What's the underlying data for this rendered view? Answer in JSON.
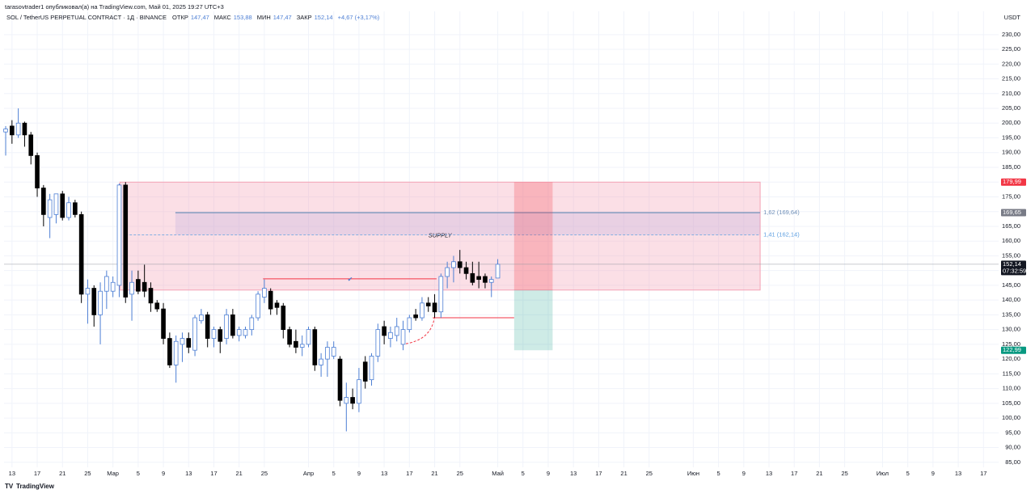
{
  "header": {
    "author": "tarasovtrader1 опубликовал(а) на TradingView.com, Май 01, 2025 19:27 UTC+3",
    "brand": "TradingView"
  },
  "chart_data": {
    "type": "candlestick",
    "title": "SOL / TetherUS PERPETUAL CONTRACT · 1Д · BINANCE",
    "ohlc_legend": [
      {
        "name": "ОТКР",
        "value": "147,47"
      },
      {
        "name": "МАКС",
        "value": "153,88"
      },
      {
        "name": "МИН",
        "value": "147,47"
      },
      {
        "name": "ЗАКР",
        "value": "152,14"
      }
    ],
    "change": "+4,67 (+3,17%)",
    "y_unit": "USDT",
    "xlim": [
      -0.26,
      157.4
    ],
    "ylim": [
      83.3,
      237.9
    ],
    "xticks": [
      {
        "value": 1,
        "label": "13"
      },
      {
        "value": 5,
        "label": "17"
      },
      {
        "value": 9,
        "label": "21"
      },
      {
        "value": 13,
        "label": "25"
      },
      {
        "value": 17,
        "label": "Мар"
      },
      {
        "value": 21,
        "label": "5"
      },
      {
        "value": 25,
        "label": "9"
      },
      {
        "value": 29,
        "label": "13"
      },
      {
        "value": 33,
        "label": "17"
      },
      {
        "value": 37,
        "label": "21"
      },
      {
        "value": 41,
        "label": "25"
      },
      {
        "value": 48,
        "label": "Апр"
      },
      {
        "value": 52,
        "label": "5"
      },
      {
        "value": 56,
        "label": "9"
      },
      {
        "value": 60,
        "label": "13"
      },
      {
        "value": 64,
        "label": "17"
      },
      {
        "value": 68,
        "label": "21"
      },
      {
        "value": 72,
        "label": "25"
      },
      {
        "value": 78,
        "label": "Май"
      },
      {
        "value": 82,
        "label": "5"
      },
      {
        "value": 86,
        "label": "9"
      },
      {
        "value": 90,
        "label": "13"
      },
      {
        "value": 94,
        "label": "17"
      },
      {
        "value": 98,
        "label": "21"
      },
      {
        "value": 102,
        "label": "25"
      },
      {
        "value": 109,
        "label": "Июн"
      },
      {
        "value": 113,
        "label": "5"
      },
      {
        "value": 117,
        "label": "9"
      },
      {
        "value": 121,
        "label": "13"
      },
      {
        "value": 125,
        "label": "17"
      },
      {
        "value": 129,
        "label": "21"
      },
      {
        "value": 133,
        "label": "25"
      },
      {
        "value": 139,
        "label": "Июл"
      },
      {
        "value": 143,
        "label": "5"
      },
      {
        "value": 147,
        "label": "9"
      },
      {
        "value": 151,
        "label": "13"
      },
      {
        "value": 155,
        "label": "17"
      }
    ],
    "yticks": [
      {
        "value": 85,
        "label": "85,00"
      },
      {
        "value": 90,
        "label": "90,00"
      },
      {
        "value": 95,
        "label": "95,00"
      },
      {
        "value": 100,
        "label": "100,00"
      },
      {
        "value": 105,
        "label": "105,00"
      },
      {
        "value": 110,
        "label": "110,00"
      },
      {
        "value": 115,
        "label": "115,00"
      },
      {
        "value": 120,
        "label": "120,00"
      },
      {
        "value": 125,
        "label": "125,00"
      },
      {
        "value": 130,
        "label": "130,00"
      },
      {
        "value": 135,
        "label": "135,00"
      },
      {
        "value": 140,
        "label": "140,00"
      },
      {
        "value": 145,
        "label": "145,00"
      },
      {
        "value": 150,
        "label": "150,00"
      },
      {
        "value": 155,
        "label": "155,00"
      },
      {
        "value": 160,
        "label": "160,00"
      },
      {
        "value": 165,
        "label": "165,00"
      },
      {
        "value": 170,
        "label": "170,00"
      },
      {
        "value": 175,
        "label": "175,00"
      },
      {
        "value": 180,
        "label": "180,00"
      },
      {
        "value": 185,
        "label": "185,00"
      },
      {
        "value": 190,
        "label": "190,00"
      },
      {
        "value": 195,
        "label": "195,00"
      },
      {
        "value": 200,
        "label": "200,00"
      },
      {
        "value": 205,
        "label": "205,00"
      },
      {
        "value": 210,
        "label": "210,00"
      },
      {
        "value": 215,
        "label": "215,00"
      },
      {
        "value": 220,
        "label": "220,00"
      },
      {
        "value": 225,
        "label": "225,00"
      },
      {
        "value": 230,
        "label": "230,00"
      }
    ],
    "grid": true,
    "bull_color": "#ffffff",
    "bull_border": "#4d7fd4",
    "bear_color": "#000000",
    "open": [
      197,
      199,
      196,
      200,
      196,
      189,
      178,
      168,
      169,
      176,
      168,
      173,
      169,
      142,
      144,
      135,
      143,
      143,
      145,
      179,
      142,
      147,
      146,
      144,
      139,
      137,
      127,
      118,
      125,
      127,
      123,
      133,
      135,
      127,
      130,
      127,
      135,
      128,
      128,
      130,
      134,
      141,
      143,
      139,
      138,
      130,
      126,
      124,
      125,
      130,
      118,
      120,
      121,
      120,
      105,
      107,
      105,
      119,
      113,
      121,
      131,
      127,
      128,
      125,
      130,
      135,
      134,
      139,
      139,
      136,
      148,
      151,
      153,
      151,
      149,
      148,
      148,
      146,
      147.47
    ],
    "high": [
      199,
      201,
      205,
      200.5,
      197,
      190,
      179,
      176,
      176,
      177,
      175,
      174,
      170,
      147,
      145,
      146,
      150,
      148,
      179.5,
      180,
      150,
      150,
      152,
      146,
      140,
      139,
      129,
      128,
      129,
      129,
      135,
      137,
      136,
      131,
      131,
      137,
      137,
      131,
      131,
      135,
      143,
      147,
      144,
      140,
      139,
      131,
      130,
      128,
      131,
      131,
      122,
      126,
      126,
      121,
      112,
      110,
      117,
      121,
      122,
      132,
      133,
      131,
      134,
      133,
      135,
      137,
      141,
      141,
      142,
      149,
      153,
      155,
      157,
      153,
      153,
      153,
      149,
      148,
      153.88
    ],
    "low": [
      189,
      193,
      195,
      192,
      186,
      175,
      165,
      161,
      166,
      167,
      167,
      168,
      139,
      132,
      131,
      125,
      137,
      141,
      141,
      139,
      133,
      142,
      141,
      136,
      136,
      125,
      117,
      112,
      119,
      122,
      121,
      132,
      124,
      124,
      122,
      125,
      127,
      126,
      127,
      128,
      133,
      139,
      135,
      135,
      127,
      124,
      122,
      121,
      124,
      116,
      114,
      114,
      120,
      104,
      95.5,
      103,
      102,
      110,
      111,
      119,
      125,
      124,
      126,
      123,
      129,
      133,
      133,
      136,
      134,
      134,
      144,
      146,
      149,
      147,
      145,
      144,
      144,
      141,
      147.47
    ],
    "close": [
      198,
      196,
      200,
      196,
      189,
      178,
      169,
      174,
      176,
      168,
      173,
      169,
      142,
      144,
      135,
      143,
      148,
      146,
      179,
      141,
      146,
      143,
      143,
      139,
      137,
      127,
      118,
      126,
      127,
      124,
      134,
      135,
      127,
      130,
      126,
      135,
      128,
      130,
      130,
      134,
      142,
      144,
      137,
      137.5,
      130,
      125,
      124,
      125,
      130,
      118,
      120,
      124,
      124,
      106,
      107,
      105,
      113,
      112.5,
      121,
      130,
      128,
      129,
      131,
      130,
      134,
      134,
      139,
      138,
      136,
      148,
      151,
      153,
      151,
      149,
      146,
      147,
      146,
      147,
      152.14
    ],
    "zone": {
      "label": "SUPPLY",
      "start": 18.1,
      "end": 119.6,
      "top": 179.99,
      "bottom": 143.4,
      "color": "#f4a3b6"
    },
    "fib_levels": [
      {
        "label": "1,62 (169,64)",
        "value": 169.64,
        "start": 26.9,
        "color": "#6f8fb8"
      },
      {
        "label": "1,41 (162,14)",
        "value": 162.14,
        "start": 19,
        "dashed": true,
        "color": "#5d9fe0"
      }
    ],
    "position": {
      "start": 80.6,
      "end": 86.7,
      "stop": 179.99,
      "entry": 143.4,
      "target": 122.99
    },
    "lines": [
      {
        "value": 147.2,
        "start": 40.8,
        "end": 68.3
      },
      {
        "value": 134,
        "start": 67.7,
        "end": 80.6
      }
    ],
    "curve": {
      "x": [
        62.8,
        68
      ],
      "y": [
        125,
        134.5
      ]
    },
    "price_labels": [
      {
        "value": 179.99,
        "label": "179,99",
        "color": "#f23645"
      },
      {
        "value": 169.65,
        "label": "169,65",
        "color": "#787b86"
      },
      {
        "value": 152.14,
        "label": "152,14",
        "sub": "07:32:59",
        "color": "#131722"
      },
      {
        "value": 122.99,
        "label": "122,99",
        "color": "#089981"
      }
    ]
  }
}
